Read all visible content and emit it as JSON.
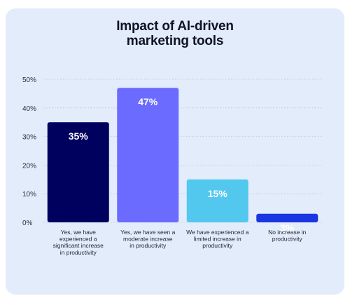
{
  "chart_data": {
    "type": "bar",
    "title_lines": [
      "Impact of AI-driven",
      "marketing tools"
    ],
    "categories": [
      [
        "Yes, we have",
        "experienced a",
        "significant increase",
        "in productivity"
      ],
      [
        "Yes, we have seen a",
        "moderate increase",
        "in productivity"
      ],
      [
        "We have experienced a",
        "limited increase in",
        "productivity"
      ],
      [
        "No increase in",
        "productivity"
      ]
    ],
    "values": [
      35,
      47,
      15,
      3
    ],
    "data_labels": [
      "35%",
      "47%",
      "15%",
      "3%"
    ],
    "bar_colors": [
      "#00005e",
      "#6c6bff",
      "#52c8ef",
      "#1a36e0"
    ],
    "ylim": [
      0,
      50
    ],
    "yticks": [
      0,
      10,
      20,
      30,
      40,
      50
    ],
    "ytick_labels": [
      "0%",
      "10%",
      "20%",
      "30%",
      "40%",
      "50%"
    ],
    "grid": true,
    "xlabel": "",
    "ylabel": ""
  }
}
